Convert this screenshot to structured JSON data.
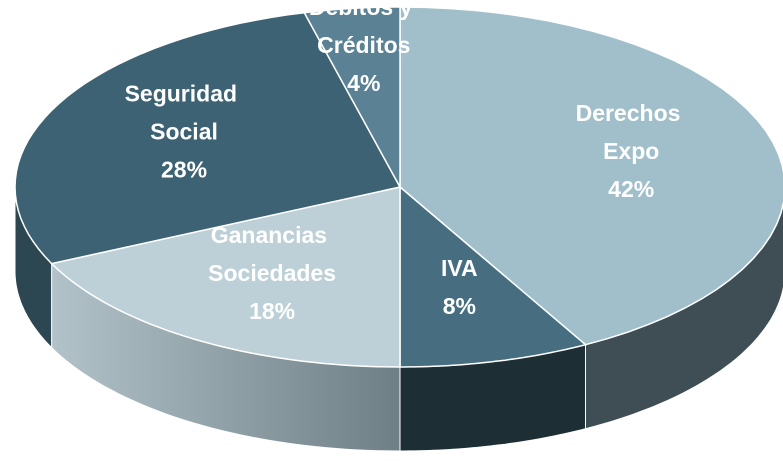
{
  "chart_data": {
    "type": "pie",
    "categories": [
      "Derechos Expo",
      "IVA",
      "Ganancias Sociedades",
      "Seguridad Social",
      "Débitos y Créditos"
    ],
    "values": [
      42,
      8,
      18,
      28,
      4
    ],
    "value_labels": [
      "42%",
      "8%",
      "18%",
      "28%",
      "4%"
    ],
    "colors": [
      "#a0bfca",
      "#466e80",
      "#bdd0d7",
      "#3d6273",
      "#5a8294"
    ],
    "side_colors": [
      "#3f4d55",
      "#1e2e35",
      "#8a9aa1",
      "#2c4652",
      "#3c5866"
    ]
  }
}
